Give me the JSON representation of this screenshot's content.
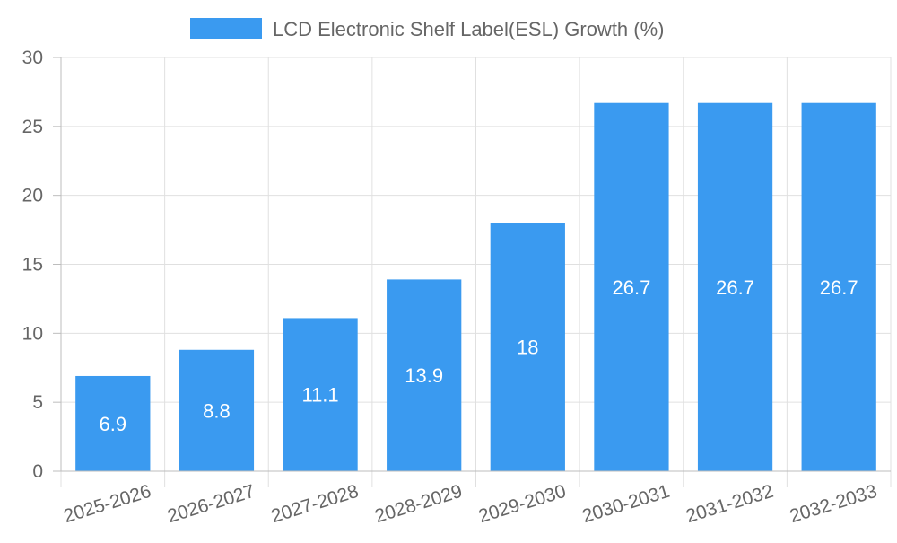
{
  "chart_data": {
    "type": "bar",
    "title": "",
    "xlabel": "",
    "ylabel": "",
    "categories": [
      "2025-2026",
      "2026-2027",
      "2027-2028",
      "2028-2029",
      "2029-2030",
      "2030-2031",
      "2031-2032",
      "2032-2033"
    ],
    "series": [
      {
        "name": "LCD Electronic Shelf Label(ESL) Growth (%)",
        "values": [
          6.9,
          8.8,
          11.1,
          13.9,
          18,
          26.7,
          26.7,
          26.7
        ],
        "color": "#3a9af0"
      }
    ],
    "ylim": [
      0,
      30
    ],
    "yticks": [
      0,
      5,
      10,
      15,
      20,
      25,
      30
    ],
    "grid": true,
    "legend_position": "top-center",
    "data_labels": true
  }
}
